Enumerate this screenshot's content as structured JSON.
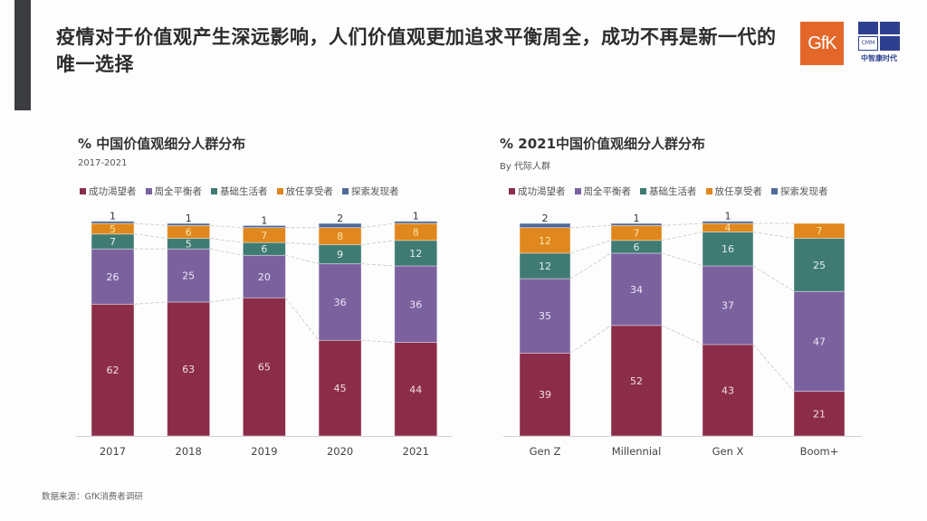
{
  "header": {
    "title": "疫情对于价值观产生深远影响，人们价值观更加追求平衡周全，成功不再是新一代的唯一选择",
    "logos": [
      {
        "name": "gfk-logo",
        "text": "GfK",
        "color": "#e4672a"
      },
      {
        "name": "cmm-logo",
        "text": "CMM",
        "subtitle": "中智康时代",
        "color": "#2d3f8f"
      }
    ]
  },
  "legend": [
    {
      "label": "成功渴望者",
      "color": "#8b2d48"
    },
    {
      "label": "周全平衡者",
      "color": "#7b629f"
    },
    {
      "label": "基础生活者",
      "color": "#3f7b73"
    },
    {
      "label": "放任享受者",
      "color": "#e0871d"
    },
    {
      "label": "探索发现者",
      "color": "#4f6a9a"
    }
  ],
  "chart_data": [
    {
      "type": "bar",
      "stacked": true,
      "title": "% 中国价值观细分人群分布",
      "subtitle": "2017-2021",
      "categories": [
        "2017",
        "2018",
        "2019",
        "2020",
        "2021"
      ],
      "series": [
        {
          "name": "成功渴望者",
          "values": [
            62,
            63,
            65,
            45,
            44
          ]
        },
        {
          "name": "周全平衡者",
          "values": [
            26,
            25,
            20,
            36,
            36
          ]
        },
        {
          "name": "基础生活者",
          "values": [
            7,
            5,
            6,
            9,
            12
          ]
        },
        {
          "name": "放任享受者",
          "values": [
            5,
            6,
            7,
            8,
            8
          ]
        },
        {
          "name": "探索发现者",
          "values": [
            1,
            1,
            1,
            2,
            1
          ]
        }
      ],
      "ylim": [
        0,
        100
      ],
      "legend_position": "top-left",
      "grid": false
    },
    {
      "type": "bar",
      "stacked": true,
      "title": "% 2021中国价值观细分人群分布",
      "subtitle": "By 代际人群",
      "categories": [
        "Gen Z",
        "Millennial",
        "Gen X",
        "Boom+"
      ],
      "series": [
        {
          "name": "成功渴望者",
          "values": [
            39,
            52,
            43,
            21
          ]
        },
        {
          "name": "周全平衡者",
          "values": [
            35,
            34,
            37,
            47
          ]
        },
        {
          "name": "基础生活者",
          "values": [
            12,
            6,
            16,
            25
          ]
        },
        {
          "name": "放任享受者",
          "values": [
            12,
            7,
            4,
            7
          ]
        },
        {
          "name": "探索发现者",
          "values": [
            2,
            1,
            1,
            null
          ]
        }
      ],
      "ylim": [
        0,
        100
      ],
      "legend_position": "top-left",
      "grid": false
    }
  ],
  "footer": {
    "source": "数据来源：GfK消费者调研"
  }
}
